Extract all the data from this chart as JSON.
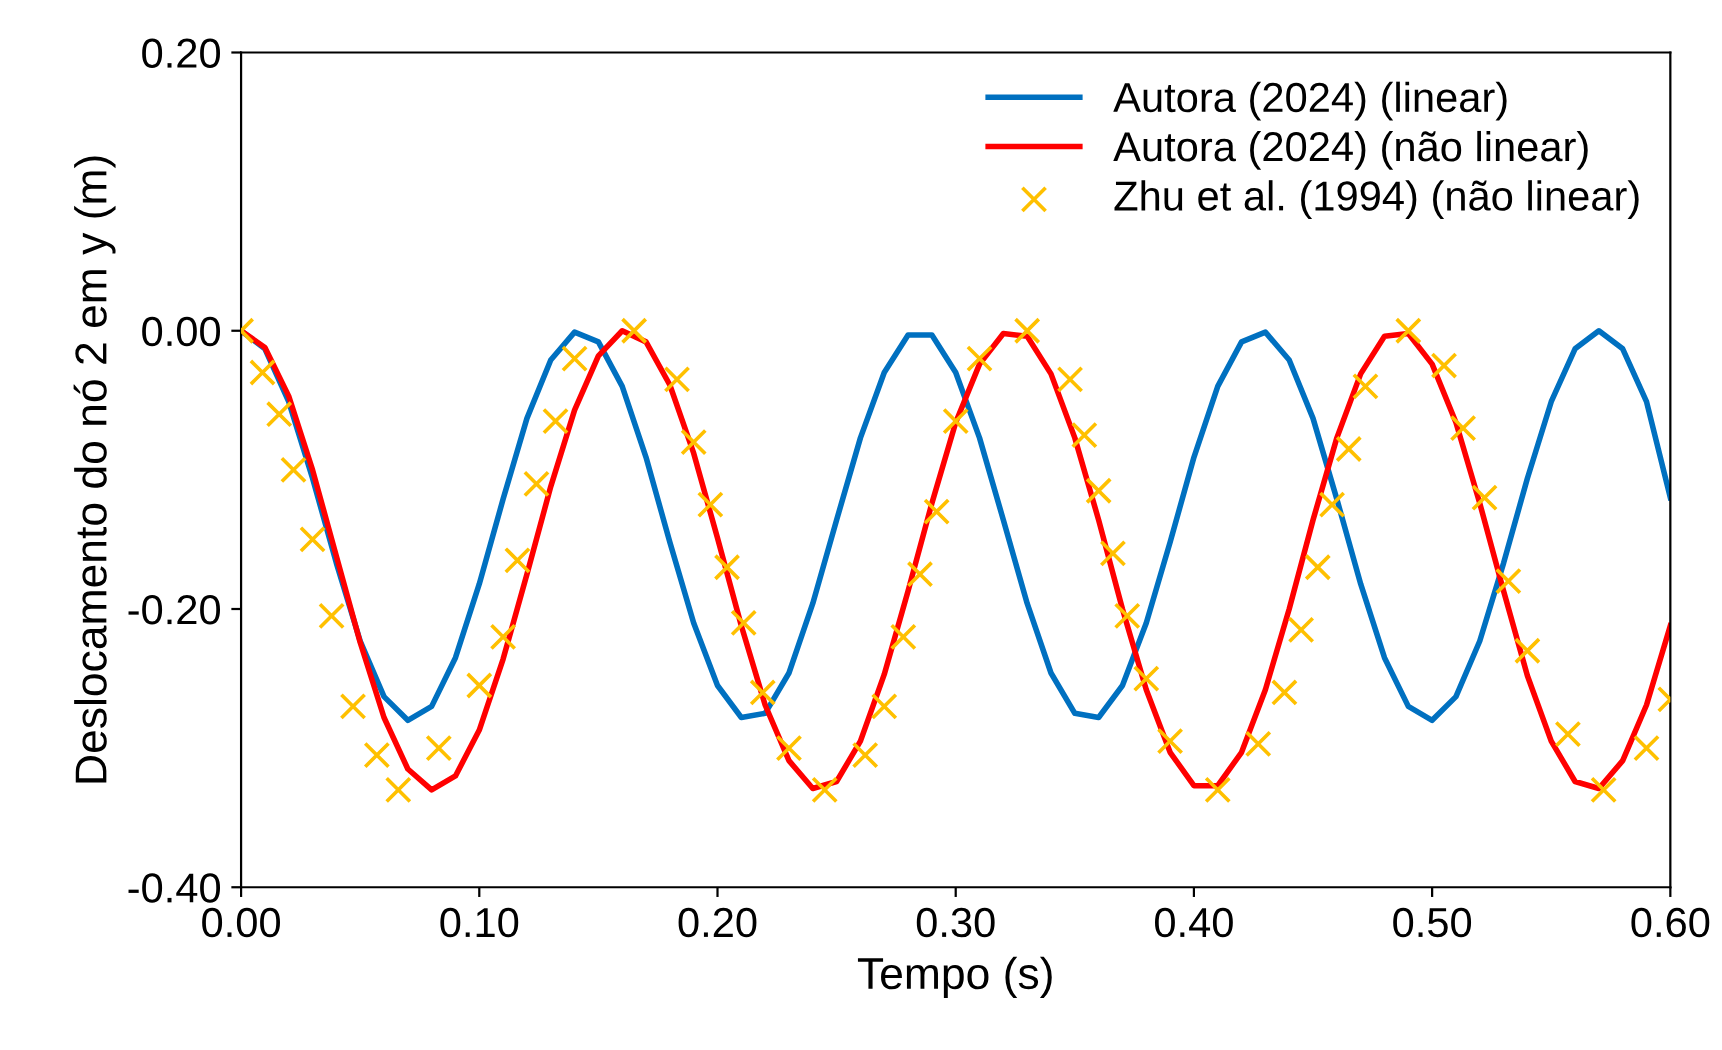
{
  "chart_data": {
    "type": "line",
    "xlabel": "Tempo (s)",
    "ylabel": "Deslocamento do nó 2 em y (m)",
    "xlim": [
      0,
      0.6
    ],
    "ylim": [
      -0.4,
      0.2
    ],
    "xticks": [
      {
        "value": 0,
        "label": "0.00"
      },
      {
        "value": 0.1,
        "label": "0.10"
      },
      {
        "value": 0.2,
        "label": "0.20"
      },
      {
        "value": 0.3,
        "label": "0.30"
      },
      {
        "value": 0.4,
        "label": "0.40"
      },
      {
        "value": 0.5,
        "label": "0.50"
      },
      {
        "value": 0.6,
        "label": "0.60"
      }
    ],
    "yticks": [
      {
        "value": -0.4,
        "label": "-0.40"
      },
      {
        "value": -0.2,
        "label": "-0.20"
      },
      {
        "value": 0,
        "label": "0.00"
      },
      {
        "value": 0.2,
        "label": "0.20"
      }
    ],
    "grid": false,
    "legend": "top right",
    "line_style": "solid",
    "series": [
      {
        "name": "Autora (2024) (linear)",
        "color": "#0070c0",
        "marker": "none",
        "x": [
          0,
          0.01,
          0.02,
          0.03,
          0.04,
          0.05,
          0.06,
          0.07,
          0.08,
          0.09,
          0.1,
          0.11,
          0.12,
          0.13,
          0.14,
          0.15,
          0.16,
          0.17,
          0.18,
          0.19,
          0.2,
          0.21,
          0.22,
          0.23,
          0.24,
          0.25,
          0.26,
          0.27,
          0.28,
          0.29,
          0.3,
          0.31,
          0.32,
          0.33,
          0.34,
          0.35,
          0.36,
          0.37,
          0.38,
          0.39,
          0.4,
          0.41,
          0.42,
          0.43,
          0.44,
          0.45,
          0.46,
          0.47,
          0.48,
          0.49,
          0.5,
          0.51,
          0.52,
          0.53,
          0.54,
          0.55,
          0.56,
          0.57,
          0.58,
          0.59,
          0.6
        ],
        "values": [
          0,
          -0.013,
          -0.051,
          -0.106,
          -0.167,
          -0.223,
          -0.263,
          -0.28,
          -0.27,
          -0.235,
          -0.182,
          -0.121,
          -0.063,
          -0.021,
          -0.001,
          -0.008,
          -0.04,
          -0.091,
          -0.152,
          -0.21,
          -0.255,
          -0.278,
          -0.275,
          -0.246,
          -0.196,
          -0.136,
          -0.077,
          -0.03,
          -0.003,
          -0.003,
          -0.03,
          -0.077,
          -0.136,
          -0.196,
          -0.246,
          -0.275,
          -0.278,
          -0.255,
          -0.21,
          -0.152,
          -0.091,
          -0.04,
          -0.008,
          -0.001,
          -0.021,
          -0.063,
          -0.121,
          -0.182,
          -0.235,
          -0.27,
          -0.28,
          -0.263,
          -0.223,
          -0.167,
          -0.106,
          -0.051,
          -0.013,
          0,
          -0.013,
          -0.051,
          -0.12
        ]
      },
      {
        "name": "Autora (2024) (não linear)",
        "color": "#ff0000",
        "marker": "none",
        "x": [
          0,
          0.01,
          0.02,
          0.03,
          0.04,
          0.05,
          0.06,
          0.07,
          0.08,
          0.09,
          0.1,
          0.11,
          0.12,
          0.13,
          0.14,
          0.15,
          0.16,
          0.17,
          0.18,
          0.19,
          0.2,
          0.21,
          0.22,
          0.23,
          0.24,
          0.25,
          0.26,
          0.27,
          0.28,
          0.29,
          0.3,
          0.31,
          0.32,
          0.33,
          0.34,
          0.35,
          0.36,
          0.37,
          0.38,
          0.39,
          0.4,
          0.41,
          0.42,
          0.43,
          0.44,
          0.45,
          0.46,
          0.47,
          0.48,
          0.49,
          0.5,
          0.51,
          0.52,
          0.53,
          0.54,
          0.55,
          0.56,
          0.57,
          0.58,
          0.59,
          0.6
        ],
        "values": [
          0,
          -0.012,
          -0.047,
          -0.1,
          -0.162,
          -0.224,
          -0.278,
          -0.315,
          -0.33,
          -0.32,
          -0.287,
          -0.236,
          -0.175,
          -0.112,
          -0.057,
          -0.018,
          0,
          -0.008,
          -0.039,
          -0.088,
          -0.149,
          -0.212,
          -0.269,
          -0.309,
          -0.329,
          -0.324,
          -0.295,
          -0.247,
          -0.187,
          -0.124,
          -0.066,
          -0.024,
          -0.002,
          -0.004,
          -0.031,
          -0.077,
          -0.136,
          -0.2,
          -0.258,
          -0.303,
          -0.327,
          -0.327,
          -0.303,
          -0.258,
          -0.2,
          -0.136,
          -0.077,
          -0.031,
          -0.004,
          -0.002,
          -0.024,
          -0.066,
          -0.124,
          -0.187,
          -0.248,
          -0.295,
          -0.324,
          -0.329,
          -0.309,
          -0.269,
          -0.212
        ]
      },
      {
        "name": "Zhu et al. (1994) (não linear)",
        "type": "scatter",
        "color": "#ffc000",
        "marker": "cross",
        "x": [
          0,
          0.009,
          0.016,
          0.022,
          0.03,
          0.038,
          0.047,
          0.057,
          0.066,
          0.083,
          0.1,
          0.11,
          0.116,
          0.124,
          0.132,
          0.14,
          0.165,
          0.183,
          0.19,
          0.197,
          0.204,
          0.211,
          0.219,
          0.23,
          0.245,
          0.262,
          0.27,
          0.278,
          0.285,
          0.292,
          0.3,
          0.31,
          0.33,
          0.348,
          0.354,
          0.36,
          0.366,
          0.372,
          0.38,
          0.39,
          0.41,
          0.427,
          0.438,
          0.445,
          0.452,
          0.458,
          0.465,
          0.472,
          0.49,
          0.505,
          0.513,
          0.522,
          0.532,
          0.54,
          0.557,
          0.572,
          0.59,
          0.6
        ],
        "values": [
          0,
          -0.03,
          -0.06,
          -0.1,
          -0.15,
          -0.205,
          -0.27,
          -0.305,
          -0.33,
          -0.3,
          -0.255,
          -0.22,
          -0.165,
          -0.11,
          -0.065,
          -0.02,
          0,
          -0.035,
          -0.08,
          -0.125,
          -0.17,
          -0.21,
          -0.26,
          -0.3,
          -0.33,
          -0.305,
          -0.27,
          -0.22,
          -0.175,
          -0.13,
          -0.065,
          -0.02,
          0,
          -0.035,
          -0.075,
          -0.115,
          -0.16,
          -0.205,
          -0.25,
          -0.295,
          -0.33,
          -0.297,
          -0.26,
          -0.215,
          -0.17,
          -0.125,
          -0.085,
          -0.04,
          0,
          -0.025,
          -0.07,
          -0.12,
          -0.18,
          -0.23,
          -0.29,
          -0.33,
          -0.3,
          -0.265
        ]
      }
    ]
  }
}
